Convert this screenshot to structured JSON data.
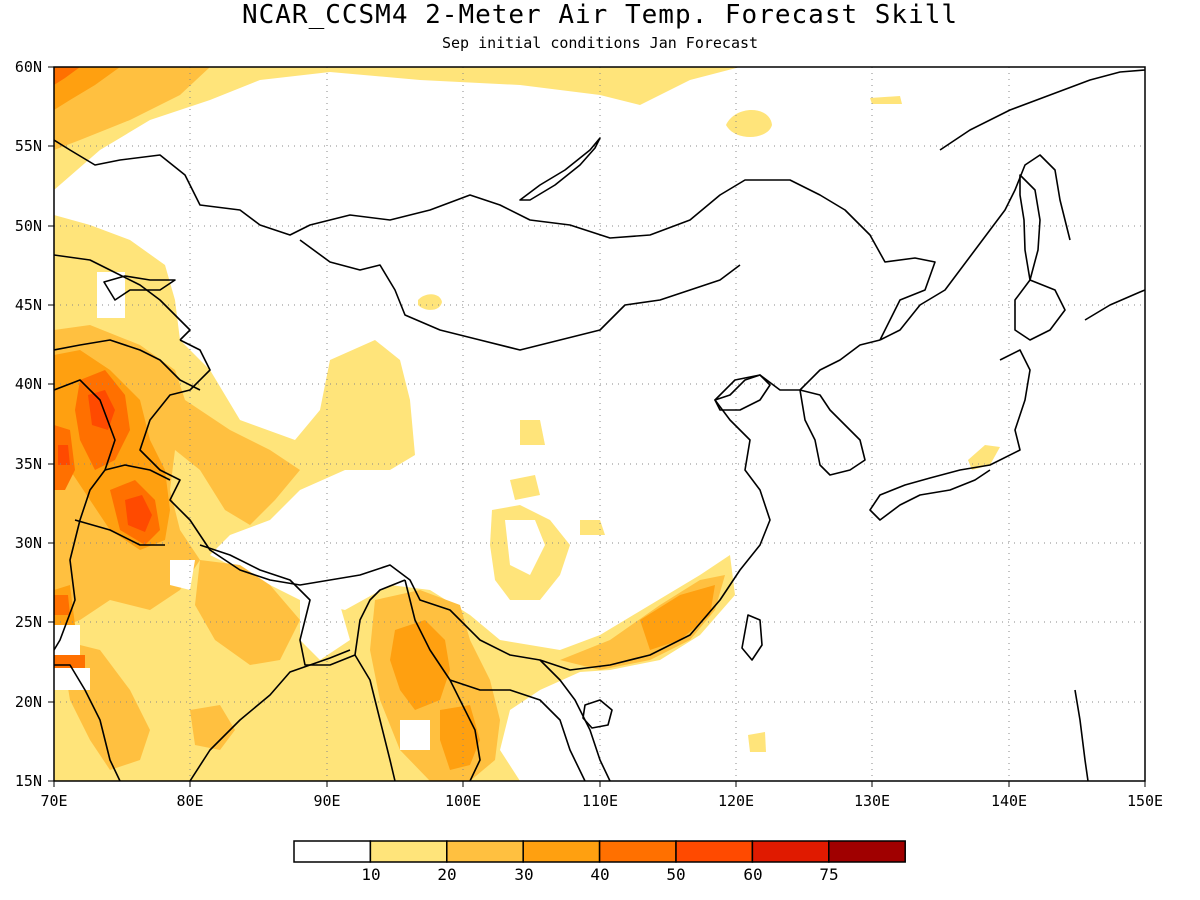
{
  "title": "NCAR_CCSM4 2-Meter Air Temp. Forecast Skill",
  "subtitle": "Sep initial conditions  Jan Forecast",
  "lat_labels": [
    "60N",
    "55N",
    "50N",
    "45N",
    "40N",
    "35N",
    "30N",
    "25N",
    "20N",
    "15N"
  ],
  "lon_labels": [
    "70E",
    "80E",
    "90E",
    "100E",
    "110E",
    "120E",
    "130E",
    "140E",
    "150E"
  ],
  "colorbar": {
    "colors": [
      "#ffffff",
      "#ffe47a",
      "#ffc040",
      "#ffa010",
      "#ff7000",
      "#ff4a00",
      "#e01a00",
      "#a00000"
    ],
    "labels": [
      "10",
      "20",
      "30",
      "40",
      "50",
      "60",
      "75"
    ]
  }
}
